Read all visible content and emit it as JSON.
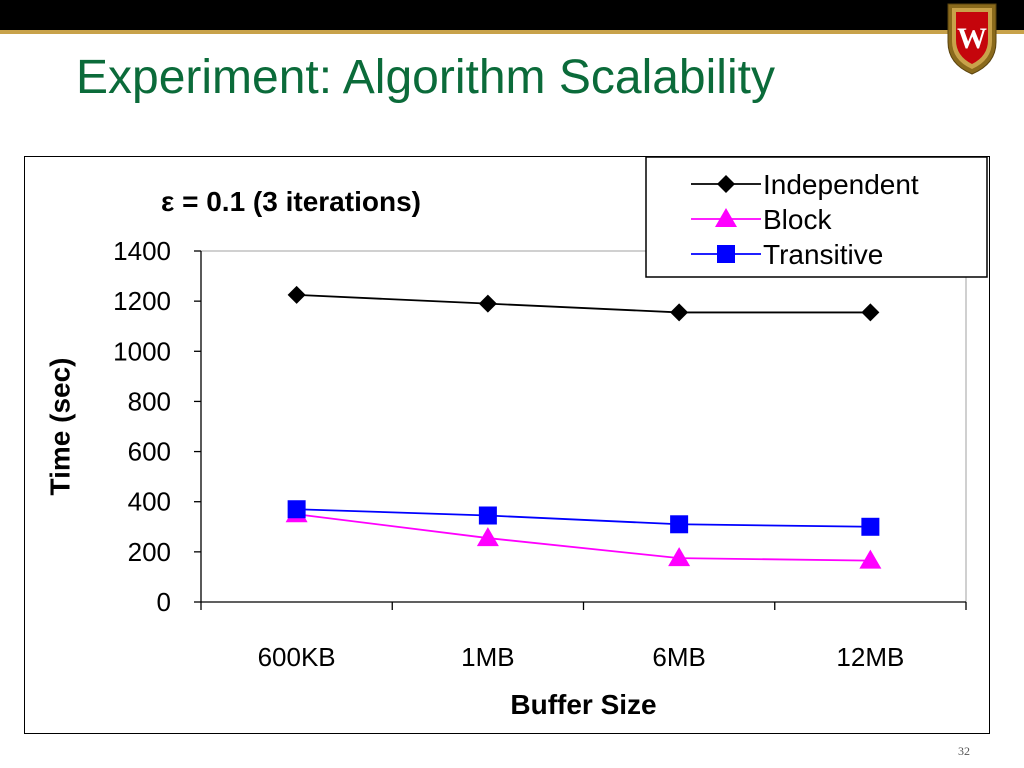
{
  "slide": {
    "title": "Experiment: Algorithm Scalability",
    "page_number": "32",
    "logo": "W",
    "colors": {
      "title": "#0b6b3a",
      "top_bar": "#000000",
      "accent_line": "#c8a24a",
      "crest": "#c5050c"
    }
  },
  "chart_data": {
    "type": "line",
    "title": "ε = 0.1 (3 iterations)",
    "xlabel": "Buffer Size",
    "ylabel": "Time (sec)",
    "categories": [
      "600KB",
      "1MB",
      "6MB",
      "12MB"
    ],
    "ylim": [
      0,
      1400
    ],
    "yticks": [
      "0",
      "200",
      "400",
      "600",
      "800",
      "1000",
      "1200",
      "1400"
    ],
    "grid": false,
    "legend": "top-right",
    "series": [
      {
        "name": "Independent",
        "values": [
          1225,
          1190,
          1155,
          1155
        ],
        "color": "#000000",
        "marker": "diamond"
      },
      {
        "name": "Block",
        "values": [
          350,
          255,
          175,
          165
        ],
        "color": "#ff00ff",
        "marker": "triangle"
      },
      {
        "name": "Transitive",
        "values": [
          370,
          345,
          310,
          300
        ],
        "color": "#0000ff",
        "marker": "square"
      }
    ]
  }
}
